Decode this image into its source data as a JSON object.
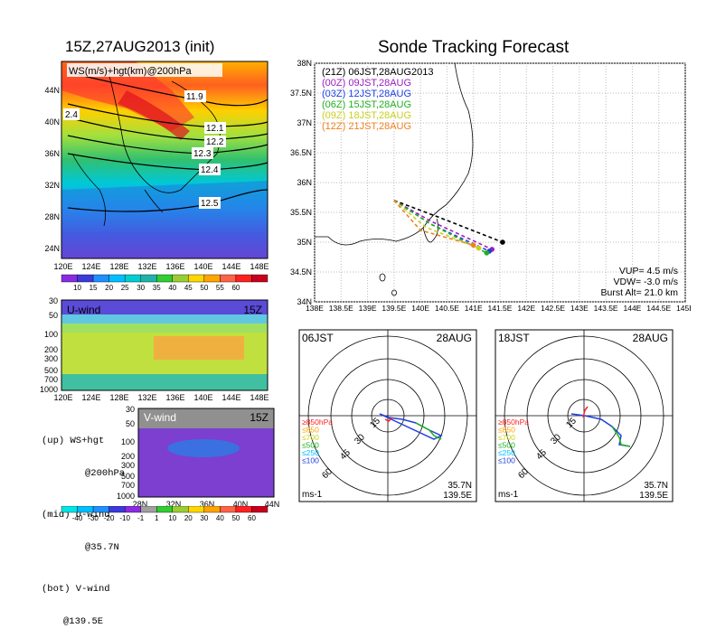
{
  "left_title": "15Z,27AUG2013 (init)",
  "right_title": "Sonde Tracking Forecast",
  "ws_panel": {
    "label": "WS(m/s)+hgt(km)@200hPa",
    "lat_ticks": [
      "44N",
      "40N",
      "36N",
      "32N",
      "28N",
      "24N"
    ],
    "lon_ticks": [
      "120E",
      "124E",
      "128E",
      "132E",
      "136E",
      "140E",
      "144E",
      "148E"
    ],
    "contour_labels": [
      "11.9",
      "12.1",
      "12.2",
      "12.3",
      "12.4",
      "12.5",
      "2.4"
    ],
    "colorbar_ticks": [
      "10",
      "15",
      "20",
      "25",
      "30",
      "35",
      "40",
      "45",
      "50",
      "55",
      "60"
    ],
    "colorbar_colors": [
      "#8a2be2",
      "#3b3bdb",
      "#1e90ff",
      "#00bfff",
      "#00ced1",
      "#20b2aa",
      "#32cd32",
      "#9acd32",
      "#ffd700",
      "#ffa500",
      "#ff6347",
      "#ff2020",
      "#c8001e"
    ]
  },
  "u_panel": {
    "label": "U-wind",
    "time": "15Z",
    "p_ticks": [
      "30",
      "50",
      "100",
      "200",
      "300",
      "500",
      "700",
      "1000"
    ],
    "lon_ticks": [
      "120E",
      "124E",
      "128E",
      "132E",
      "136E",
      "140E",
      "144E",
      "148E"
    ]
  },
  "v_panel": {
    "label": "V-wind",
    "time": "15Z",
    "p_ticks": [
      "30",
      "50",
      "100",
      "200",
      "300",
      "500",
      "700",
      "1000"
    ],
    "lat_ticks": [
      "28N",
      "32N",
      "36N",
      "40N",
      "44N"
    ],
    "colorbar_ticks": [
      "-40",
      "-30",
      "-20",
      "-10",
      "-1",
      "1",
      "10",
      "20",
      "30",
      "40",
      "50",
      "60"
    ],
    "colorbar_colors": [
      "#00e5e5",
      "#00bfff",
      "#1e90ff",
      "#3b3bdb",
      "#8a2be2",
      "#a0a0a0",
      "#32cd32",
      "#9acd32",
      "#ffd700",
      "#ffa500",
      "#ff6347",
      "#ff2020",
      "#c8001e"
    ]
  },
  "notes": {
    "up_a": "(up) WS+hgt",
    "up_b": "@200hPa",
    "mid_a": "(mid) U-wind",
    "mid_b": "@35.7N",
    "bot_a": "(bot) V-wind",
    "bot_b": "@139.5E"
  },
  "track_map": {
    "lat_ticks": [
      "38N",
      "37.5N",
      "37N",
      "36.5N",
      "36N",
      "35.5N",
      "35N",
      "34.5N",
      "34N"
    ],
    "lon_ticks": [
      "138E",
      "138.5E",
      "139E",
      "139.5E",
      "140E",
      "140.5E",
      "141E",
      "141.5E",
      "142E",
      "142.5E",
      "143E",
      "143.5E",
      "144E",
      "144.5E",
      "145E"
    ],
    "legend": [
      {
        "label": "(21Z) 06JST,28AUG2013",
        "color": "#000000"
      },
      {
        "label": "(00Z) 09JST,28AUG",
        "color": "#9b1fbf"
      },
      {
        "label": "(03Z) 12JST,28AUG",
        "color": "#2040e0"
      },
      {
        "label": "(06Z) 15JST,28AUG",
        "color": "#20b020"
      },
      {
        "label": "(09Z) 18JST,28AUG",
        "color": "#c8d020"
      },
      {
        "label": "(12Z) 21JST,28AUG",
        "color": "#f08020"
      }
    ],
    "vup": "VUP= 4.5 m/s",
    "vdw": "VDW= -3.0 m/s",
    "burst": "Burst Alt= 21.0 km"
  },
  "chart_data": {
    "type": "line",
    "title": "Sonde Tracking Forecast",
    "xlim": [
      138,
      145
    ],
    "ylim": [
      34,
      38
    ],
    "series": [
      {
        "name": "(21Z) 06JST,28AUG2013",
        "points": [
          [
            139.5,
            35.7
          ],
          [
            140.4,
            35.4
          ],
          [
            141.55,
            35.0
          ]
        ]
      },
      {
        "name": "(00Z) 09JST,28AUG",
        "points": [
          [
            139.5,
            35.7
          ],
          [
            140.2,
            35.35
          ],
          [
            141.35,
            34.88
          ]
        ]
      },
      {
        "name": "(03Z) 12JST,28AUG",
        "points": [
          [
            139.5,
            35.7
          ],
          [
            140.2,
            35.3
          ],
          [
            141.3,
            34.85
          ]
        ]
      },
      {
        "name": "(06Z) 15JST,28AUG",
        "points": [
          [
            139.5,
            35.7
          ],
          [
            140.2,
            35.3
          ],
          [
            141.25,
            34.82
          ]
        ]
      },
      {
        "name": "(09Z) 18JST,28AUG",
        "points": [
          [
            139.5,
            35.7
          ],
          [
            140.1,
            35.25
          ],
          [
            141.1,
            34.9
          ]
        ]
      },
      {
        "name": "(12Z) 21JST,28AUG",
        "points": [
          [
            139.5,
            35.7
          ],
          [
            140.0,
            35.2
          ],
          [
            141.0,
            34.95
          ]
        ]
      }
    ]
  },
  "hodo_left": {
    "time": "06JST",
    "date": "28AUG",
    "ring_labels": [
      "15",
      "30",
      "45",
      "60"
    ],
    "legend": [
      {
        "label": "≥850hPa",
        "color": "#ff2020"
      },
      {
        "label": "≤850",
        "color": "#ffa500"
      },
      {
        "label": "≤700",
        "color": "#d0d020"
      },
      {
        "label": "≤500",
        "color": "#20b020"
      },
      {
        "label": "≤250",
        "color": "#00bfff"
      },
      {
        "label": "≤100",
        "color": "#2040e0"
      }
    ],
    "lat": "35.7N",
    "lon": "139.5E",
    "unit": "ms-1"
  },
  "hodo_right": {
    "time": "18JST",
    "date": "28AUG",
    "ring_labels": [
      "15",
      "30",
      "45",
      "60"
    ],
    "legend": [
      {
        "label": "≥850hPa",
        "color": "#ff2020"
      },
      {
        "label": "≤850",
        "color": "#ffa500"
      },
      {
        "label": "≤700",
        "color": "#d0d020"
      },
      {
        "label": "≤500",
        "color": "#20b020"
      },
      {
        "label": "≤250",
        "color": "#00bfff"
      },
      {
        "label": "≤100",
        "color": "#2040e0"
      }
    ],
    "lat": "35.7N",
    "lon": "139.5E",
    "unit": "ms-1"
  }
}
